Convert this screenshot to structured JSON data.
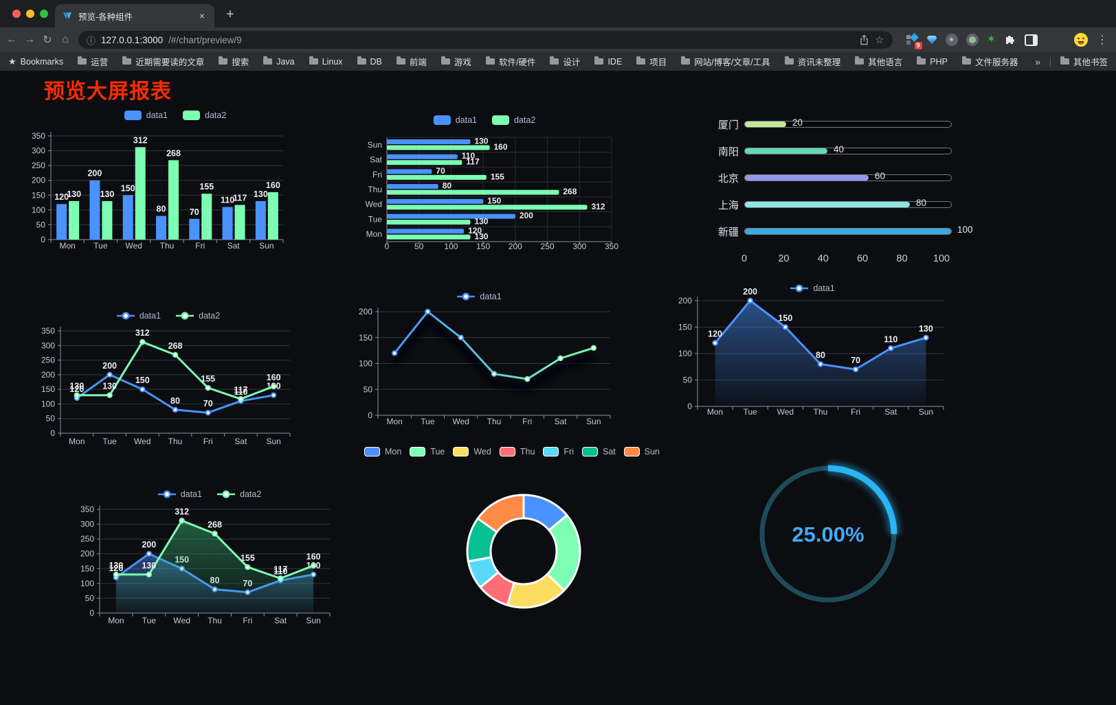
{
  "browser": {
    "tab_title": "预览-各种组件",
    "close_tab": "×",
    "new_tab": "+",
    "url_host": "127.0.0.1:3000",
    "url_path": "/#/chart/preview/9",
    "bookmarks_root": "Bookmarks",
    "bookmarks": [
      "运营",
      "近期需要读的文章",
      "搜索",
      "Java",
      "Linux",
      "DB",
      "前端",
      "游戏",
      "软件/硬件",
      "设计",
      "IDE",
      "项目",
      "网站/博客/文章/工具",
      "资讯未整理",
      "其他语言",
      "PHP",
      "文件服务器"
    ],
    "bookmarks_overflow": "»",
    "other_bookmarks": "其他书签",
    "extension_badge": "9"
  },
  "page": {
    "title": "预览大屏报表",
    "title_color": "#fe2b01"
  },
  "chart_data": [
    {
      "id": "grouped-bar",
      "type": "bar",
      "categories": [
        "Mon",
        "Tue",
        "Wed",
        "Thu",
        "Fri",
        "Sat",
        "Sun"
      ],
      "series": [
        {
          "name": "data1",
          "color": "#4992ff",
          "values": [
            120,
            200,
            150,
            80,
            70,
            110,
            130
          ]
        },
        {
          "name": "data2",
          "color": "#7cffb2",
          "values": [
            130,
            130,
            312,
            268,
            155,
            117,
            160
          ]
        }
      ],
      "ylim": [
        0,
        350
      ],
      "ytick": 50,
      "legend_position": "top",
      "grid": true,
      "value_labels": true
    },
    {
      "id": "grouped-bar-horizontal",
      "type": "bar",
      "orientation": "horizontal",
      "categories_top_to_bottom": [
        "Sun",
        "Sat",
        "Fri",
        "Thu",
        "Wed",
        "Tue",
        "Mon"
      ],
      "series": [
        {
          "name": "data1",
          "color": "#4992ff",
          "values": [
            120,
            200,
            150,
            80,
            70,
            110,
            130
          ]
        },
        {
          "name": "data2",
          "color": "#7cffb2",
          "values": [
            130,
            130,
            312,
            268,
            155,
            117,
            160
          ]
        }
      ],
      "xlim": [
        0,
        350
      ],
      "xtick": 50,
      "legend_position": "top",
      "value_labels": true
    },
    {
      "id": "capsule-progress",
      "type": "bar",
      "style": "rounded-progress",
      "categories": [
        "厦门",
        "南阳",
        "北京",
        "上海",
        "新疆"
      ],
      "values": [
        20,
        40,
        60,
        80,
        100
      ],
      "colors": [
        "#c3e794",
        "#5fdbb0",
        "#9399e8",
        "#8fe5e0",
        "#38a9e4"
      ],
      "xlim": [
        0,
        100
      ],
      "xticks": [
        0,
        20,
        40,
        60,
        80,
        100
      ]
    },
    {
      "id": "line-two-series",
      "type": "line",
      "categories": [
        "Mon",
        "Tue",
        "Wed",
        "Thu",
        "Fri",
        "Sat",
        "Sun"
      ],
      "series": [
        {
          "name": "data1",
          "color": "#4992ff",
          "values": [
            120,
            200,
            150,
            80,
            70,
            110,
            130
          ]
        },
        {
          "name": "data2",
          "color": "#7cffb2",
          "values": [
            130,
            130,
            312,
            268,
            155,
            117,
            160
          ]
        }
      ],
      "ylim": [
        0,
        350
      ],
      "ytick": 50,
      "value_labels": true
    },
    {
      "id": "line-gradient",
      "type": "line",
      "categories": [
        "Mon",
        "Tue",
        "Wed",
        "Thu",
        "Fri",
        "Sat",
        "Sun"
      ],
      "series": [
        {
          "name": "data1",
          "gradient": [
            "#4992ff",
            "#7cffb2"
          ],
          "values": [
            120,
            200,
            150,
            80,
            70,
            110,
            130
          ]
        }
      ],
      "ylim": [
        0,
        200
      ],
      "ytick": 50,
      "value_labels": false,
      "shadow": true
    },
    {
      "id": "area-single",
      "type": "area",
      "categories": [
        "Mon",
        "Tue",
        "Wed",
        "Thu",
        "Fri",
        "Sat",
        "Sun"
      ],
      "series": [
        {
          "name": "data1",
          "color": "#4992ff",
          "fill": [
            "rgba(73,146,255,0.50)",
            "rgba(73,146,255,0.03)"
          ],
          "values": [
            120,
            200,
            150,
            80,
            70,
            110,
            130
          ]
        }
      ],
      "ylim": [
        0,
        200
      ],
      "ytick": 50,
      "value_labels": true
    },
    {
      "id": "area-two-series",
      "type": "area",
      "categories": [
        "Mon",
        "Tue",
        "Wed",
        "Thu",
        "Fri",
        "Sat",
        "Sun"
      ],
      "series": [
        {
          "name": "data1",
          "color": "#4992ff",
          "fill": [
            "rgba(73,146,255,0.45)",
            "rgba(73,146,255,0.04)"
          ],
          "values": [
            120,
            200,
            150,
            80,
            70,
            110,
            130
          ]
        },
        {
          "name": "data2",
          "color": "#7cffb2",
          "fill": [
            "rgba(60,190,120,0.45)",
            "rgba(60,190,120,0.04)"
          ],
          "values": [
            130,
            130,
            312,
            268,
            155,
            117,
            160
          ]
        }
      ],
      "ylim": [
        0,
        350
      ],
      "ytick": 50,
      "value_labels": true
    },
    {
      "id": "donut",
      "type": "pie",
      "categories": [
        "Mon",
        "Tue",
        "Wed",
        "Thu",
        "Fri",
        "Sat",
        "Sun"
      ],
      "values": [
        120,
        200,
        150,
        80,
        70,
        110,
        130
      ],
      "colors": [
        "#4992ff",
        "#7cffb2",
        "#fddd60",
        "#ff6e76",
        "#58d9f9",
        "#05c091",
        "#ff8a45"
      ],
      "inner_radius_ratio": 0.58,
      "border_color": "#ffffff",
      "legend_position": "top"
    },
    {
      "id": "ring-gauge",
      "type": "gauge",
      "percent": 25,
      "label": "25.00%",
      "color": "#29b5f4",
      "track_color": "#1d4b59",
      "text_color": "#41a9f4"
    }
  ]
}
